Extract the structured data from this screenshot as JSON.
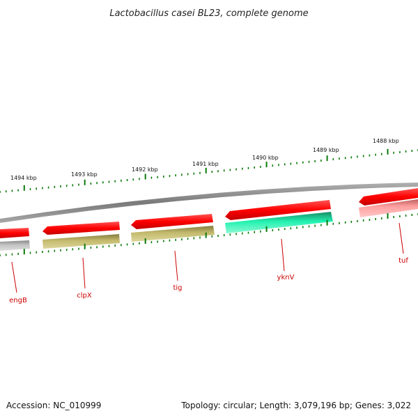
{
  "title": "Lactobacillus casei BL23, complete genome",
  "footer": {
    "accession": "Accession: NC_010999",
    "summary": "Topology: circular; Length: 3,079,196 bp; Genes: 3,022"
  },
  "scale_labels": [
    "1494 kbp",
    "1493 kbp",
    "1492 kbp",
    "1491 kbp",
    "1490 kbp",
    "1489 kbp",
    "1488 kbp"
  ],
  "gene_labels": [
    "engB",
    "clpX",
    "tig",
    "yknV",
    "tuf"
  ],
  "colors": {
    "backbone": "#8a8a8a",
    "outer_feature": "#ff0000",
    "outer_feature_light": "#ff9a9a",
    "inner_gray": "#c0c0c0",
    "inner_olive": "#c2b96a",
    "inner_teal": "#22f2b0",
    "tick": "#0a7a0a",
    "gene_line": "#cc0000"
  }
}
